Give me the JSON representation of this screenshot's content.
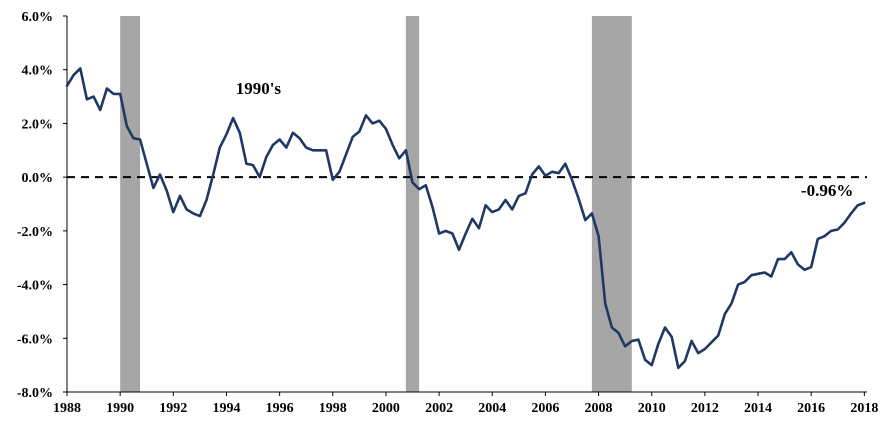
{
  "chart_data": {
    "type": "line",
    "title": "",
    "xlabel": "",
    "ylabel": "",
    "xlim": [
      1988,
      2018.1
    ],
    "ylim": [
      -8.0,
      6.0
    ],
    "yticks": [
      {
        "value": 6,
        "label": "6.0%"
      },
      {
        "value": 4,
        "label": "4.0%"
      },
      {
        "value": 2,
        "label": "2.0%"
      },
      {
        "value": 0,
        "label": "0.0%"
      },
      {
        "value": -2,
        "label": "-2.0%"
      },
      {
        "value": -4,
        "label": "-4.0%"
      },
      {
        "value": -6,
        "label": "-6.0%"
      },
      {
        "value": -8,
        "label": "-8.0%"
      }
    ],
    "xticks": [
      {
        "value": 1988,
        "label": "1988"
      },
      {
        "value": 1990,
        "label": "1990"
      },
      {
        "value": 1992,
        "label": "1992"
      },
      {
        "value": 1994,
        "label": "1994"
      },
      {
        "value": 1996,
        "label": "1996"
      },
      {
        "value": 1998,
        "label": "1998"
      },
      {
        "value": 2000,
        "label": "2000"
      },
      {
        "value": 2002,
        "label": "2002"
      },
      {
        "value": 2004,
        "label": "2004"
      },
      {
        "value": 2006,
        "label": "2006"
      },
      {
        "value": 2008,
        "label": "2008"
      },
      {
        "value": 2010,
        "label": "2010"
      },
      {
        "value": 2012,
        "label": "2012"
      },
      {
        "value": 2014,
        "label": "2014"
      },
      {
        "value": 2016,
        "label": "2016"
      },
      {
        "value": 2018,
        "label": "2018"
      }
    ],
    "reference_line": {
      "y": 0,
      "style": "dashed"
    },
    "recessions": [
      {
        "start": 1990.0,
        "end": 1990.75
      },
      {
        "start": 2000.75,
        "end": 2001.25
      },
      {
        "start": 2007.75,
        "end": 2009.25
      }
    ],
    "series": [
      {
        "color": "#1f3864",
        "x": [
          1988.0,
          1988.25,
          1988.5,
          1988.75,
          1989.0,
          1989.25,
          1989.5,
          1989.75,
          1990.0,
          1990.25,
          1990.5,
          1990.75,
          1991.0,
          1991.25,
          1991.5,
          1991.75,
          1992.0,
          1992.25,
          1992.5,
          1992.75,
          1993.0,
          1993.25,
          1993.5,
          1993.75,
          1994.0,
          1994.25,
          1994.5,
          1994.75,
          1995.0,
          1995.25,
          1995.5,
          1995.75,
          1996.0,
          1996.25,
          1996.5,
          1996.75,
          1997.0,
          1997.25,
          1997.5,
          1997.75,
          1998.0,
          1998.25,
          1998.5,
          1998.75,
          1999.0,
          1999.25,
          1999.5,
          1999.75,
          2000.0,
          2000.25,
          2000.5,
          2000.75,
          2001.0,
          2001.25,
          2001.5,
          2001.75,
          2002.0,
          2002.25,
          2002.5,
          2002.75,
          2003.0,
          2003.25,
          2003.5,
          2003.75,
          2004.0,
          2004.25,
          2004.5,
          2004.75,
          2005.0,
          2005.25,
          2005.5,
          2005.75,
          2006.0,
          2006.25,
          2006.5,
          2006.75,
          2007.0,
          2007.25,
          2007.5,
          2007.75,
          2008.0,
          2008.25,
          2008.5,
          2008.75,
          2009.0,
          2009.25,
          2009.5,
          2009.75,
          2010.0,
          2010.25,
          2010.5,
          2010.75,
          2011.0,
          2011.25,
          2011.5,
          2011.75,
          2012.0,
          2012.25,
          2012.5,
          2012.75,
          2013.0,
          2013.25,
          2013.5,
          2013.75,
          2014.0,
          2014.25,
          2014.5,
          2014.75,
          2015.0,
          2015.25,
          2015.5,
          2015.75,
          2016.0,
          2016.25,
          2016.5,
          2016.75,
          2017.0,
          2017.25,
          2017.5,
          2017.75,
          2018.0
        ],
        "values": [
          3.4,
          3.8,
          4.05,
          2.9,
          3.0,
          2.5,
          3.3,
          3.1,
          3.1,
          1.9,
          1.45,
          1.4,
          0.5,
          -0.4,
          0.1,
          -0.5,
          -1.3,
          -0.7,
          -1.2,
          -1.35,
          -1.45,
          -0.85,
          0.1,
          1.1,
          1.6,
          2.2,
          1.65,
          0.5,
          0.45,
          0.0,
          0.75,
          1.2,
          1.4,
          1.1,
          1.65,
          1.45,
          1.1,
          1.0,
          1.0,
          1.0,
          -0.1,
          0.2,
          0.85,
          1.5,
          1.7,
          2.3,
          2.0,
          2.1,
          1.8,
          1.2,
          0.7,
          1.0,
          -0.2,
          -0.45,
          -0.3,
          -1.1,
          -2.1,
          -2.0,
          -2.1,
          -2.7,
          -2.1,
          -1.55,
          -1.9,
          -1.05,
          -1.3,
          -1.2,
          -0.85,
          -1.2,
          -0.7,
          -0.6,
          0.1,
          0.4,
          0.05,
          0.2,
          0.15,
          0.5,
          -0.1,
          -0.8,
          -1.6,
          -1.35,
          -2.2,
          -4.7,
          -5.6,
          -5.8,
          -6.3,
          -6.1,
          -6.05,
          -6.8,
          -7.0,
          -6.2,
          -5.6,
          -5.95,
          -7.1,
          -6.85,
          -6.1,
          -6.55,
          -6.4,
          -6.15,
          -5.9,
          -5.1,
          -4.7,
          -4.0,
          -3.9,
          -3.65,
          -3.6,
          -3.55,
          -3.7,
          -3.05,
          -3.05,
          -2.8,
          -3.25,
          -3.45,
          -3.35,
          -2.3,
          -2.2,
          -2.0,
          -1.95,
          -1.7,
          -1.35,
          -1.05,
          -0.96
        ]
      }
    ],
    "annotations": [
      {
        "text": "1990's",
        "x": 1995.2,
        "y": 3.1
      },
      {
        "text": "-0.96%",
        "x": 2016.6,
        "y": -0.7
      }
    ],
    "grid": false,
    "legend": "none"
  }
}
